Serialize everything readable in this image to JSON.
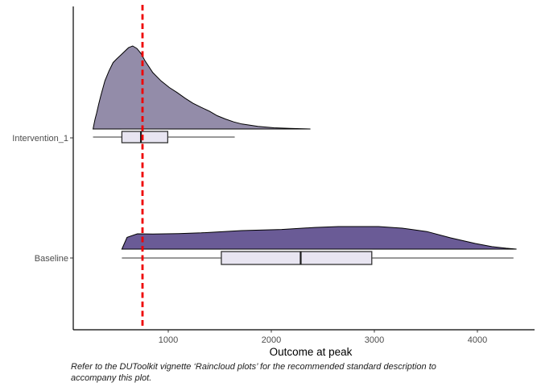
{
  "figure": {
    "caption_line1": "Refer to the DUToolkit vignette ‘Raincloud plots’ for the recommended standard description to",
    "caption_line2": "accompany this plot."
  },
  "chart_data": {
    "type": "raincloud (half-eye density + boxplot)",
    "title": "",
    "xlabel": "Outcome at peak",
    "ylabel": "",
    "xlim": [
      80,
      4550
    ],
    "x_ticks": [
      1000,
      2000,
      3000,
      4000
    ],
    "grid": "off",
    "legend": "none",
    "categories": [
      "Intervention_1",
      "Baseline"
    ],
    "reference_line": {
      "x": 750,
      "style": "dashed",
      "color": "#EE0000"
    },
    "colors": {
      "box_fill": "#E8E5F1",
      "box_stroke": "#333333",
      "median_stroke": "#1a1a1a",
      "density_stroke": "#000000",
      "axis_color": "#000000",
      "tick_label_color": "#4D4D4D"
    },
    "series": [
      {
        "name": "Intervention_1",
        "fill": "#938CA9",
        "box": {
          "min": 270,
          "q1": 550,
          "median": 735,
          "q3": 995,
          "max": 1645
        },
        "density": [
          [
            270,
            0.0
          ],
          [
            280,
            0.06
          ],
          [
            290,
            0.12
          ],
          [
            305,
            0.19
          ],
          [
            325,
            0.3
          ],
          [
            345,
            0.4
          ],
          [
            385,
            0.58
          ],
          [
            425,
            0.7
          ],
          [
            465,
            0.8
          ],
          [
            500,
            0.845
          ],
          [
            540,
            0.89
          ],
          [
            615,
            0.98
          ],
          [
            655,
            1.0
          ],
          [
            695,
            0.97
          ],
          [
            735,
            0.91
          ],
          [
            775,
            0.82
          ],
          [
            850,
            0.68
          ],
          [
            930,
            0.58
          ],
          [
            1010,
            0.5
          ],
          [
            1085,
            0.44
          ],
          [
            1165,
            0.37
          ],
          [
            1240,
            0.31
          ],
          [
            1320,
            0.26
          ],
          [
            1400,
            0.215
          ],
          [
            1475,
            0.16
          ],
          [
            1555,
            0.12
          ],
          [
            1635,
            0.085
          ],
          [
            1715,
            0.06
          ],
          [
            1870,
            0.032
          ],
          [
            2025,
            0.015
          ],
          [
            2180,
            0.007
          ],
          [
            2380,
            0.0
          ]
        ]
      },
      {
        "name": "Baseline",
        "fill": "#6A5B96",
        "box": {
          "min": 550,
          "q1": 1515,
          "median": 2285,
          "q3": 2975,
          "max": 4350
        },
        "density": [
          [
            550,
            0.0
          ],
          [
            600,
            0.52
          ],
          [
            700,
            0.68
          ],
          [
            850,
            0.67
          ],
          [
            1100,
            0.69
          ],
          [
            1320,
            0.72
          ],
          [
            1710,
            0.82
          ],
          [
            2100,
            0.87
          ],
          [
            2420,
            0.96
          ],
          [
            2650,
            1.0
          ],
          [
            3040,
            1.0
          ],
          [
            3270,
            0.93
          ],
          [
            3510,
            0.78
          ],
          [
            3740,
            0.5
          ],
          [
            3980,
            0.25
          ],
          [
            4140,
            0.11
          ],
          [
            4280,
            0.04
          ],
          [
            4380,
            0.0
          ]
        ]
      }
    ]
  }
}
